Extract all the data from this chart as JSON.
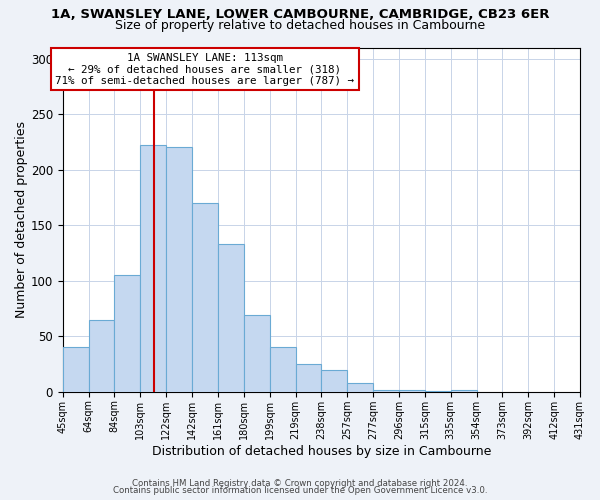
{
  "title": "1A, SWANSLEY LANE, LOWER CAMBOURNE, CAMBRIDGE, CB23 6ER",
  "subtitle": "Size of property relative to detached houses in Cambourne",
  "xlabel": "Distribution of detached houses by size in Cambourne",
  "ylabel": "Number of detached properties",
  "bar_values": [
    40,
    65,
    105,
    222,
    220,
    170,
    133,
    69,
    40,
    25,
    20,
    8,
    2,
    2,
    1,
    2
  ],
  "tick_labels": [
    "45sqm",
    "64sqm",
    "84sqm",
    "103sqm",
    "122sqm",
    "142sqm",
    "161sqm",
    "180sqm",
    "199sqm",
    "219sqm",
    "238sqm",
    "257sqm",
    "277sqm",
    "296sqm",
    "315sqm",
    "335sqm",
    "354sqm",
    "373sqm",
    "392sqm",
    "412sqm",
    "431sqm"
  ],
  "n_ticks": 21,
  "ylim": [
    0,
    310
  ],
  "yticks": [
    0,
    50,
    100,
    150,
    200,
    250,
    300
  ],
  "bar_color": "#c5d8f0",
  "bar_edge_color": "#6aaad4",
  "vline_bin": 3.65,
  "vline_color": "#cc0000",
  "annotation_title": "1A SWANSLEY LANE: 113sqm",
  "annotation_line1": "← 29% of detached houses are smaller (318)",
  "annotation_line2": "71% of semi-detached houses are larger (787) →",
  "annotation_box_color": "#ffffff",
  "annotation_box_edge_color": "#cc0000",
  "footer1": "Contains HM Land Registry data © Crown copyright and database right 2024.",
  "footer2": "Contains public sector information licensed under the Open Government Licence v3.0.",
  "background_color": "#eef2f8",
  "plot_background": "#ffffff",
  "grid_color": "#c8d4e8"
}
